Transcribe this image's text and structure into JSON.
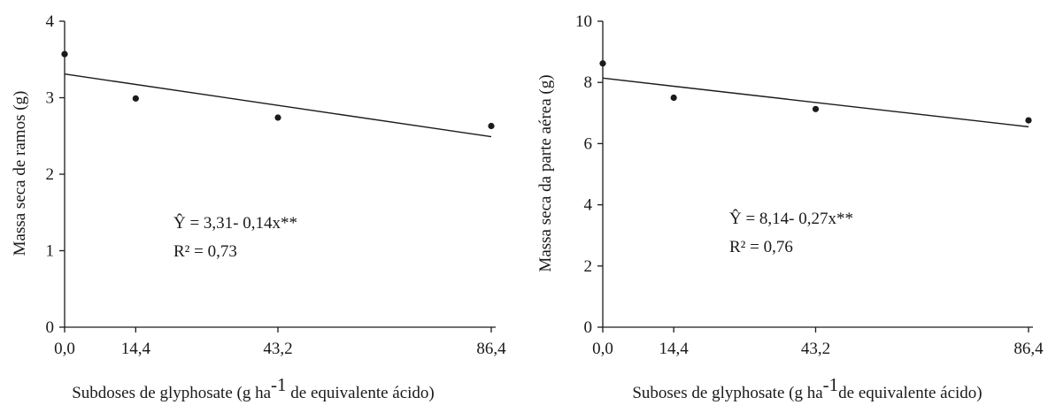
{
  "chart_data": [
    {
      "type": "scatter",
      "ylabel": "Massa seca de ramos (g)",
      "xlabel": "Subdoses de glyphosate (g ha",
      "xlabel_sup": "-1",
      "xlabel_tail": " de equivalente ácido)",
      "x_tick_labels": [
        "0,0",
        "14,4",
        "43,2",
        "86,4"
      ],
      "x_values": [
        0,
        14.4,
        43.2,
        86.4
      ],
      "y_ticks": [
        "0",
        "1",
        "2",
        "3",
        "4"
      ],
      "ylim": [
        0,
        4
      ],
      "points": [
        {
          "x": 0.0,
          "y": 3.57
        },
        {
          "x": 14.4,
          "y": 2.99
        },
        {
          "x": 43.2,
          "y": 2.74
        },
        {
          "x": 86.4,
          "y": 2.63
        }
      ],
      "trendline": {
        "from": [
          0,
          3.31
        ],
        "to": [
          86.4,
          2.49
        ]
      },
      "equation": "Ŷ = 3,31- 0,14x**",
      "r2": "R² = 0,73"
    },
    {
      "type": "scatter",
      "ylabel": "Massa seca da parte aérea (g)",
      "xlabel": "Suboses de glyphosate (g ha",
      "xlabel_sup": "-1",
      "xlabel_tail": "de equivalente ácido)",
      "x_tick_labels": [
        "0,0",
        "14,4",
        "43,2",
        "86,4"
      ],
      "x_values": [
        0,
        14.4,
        43.2,
        86.4
      ],
      "y_ticks": [
        "0",
        "2",
        "4",
        "6",
        "8",
        "10"
      ],
      "ylim": [
        0,
        10
      ],
      "points": [
        {
          "x": 0.0,
          "y": 8.62
        },
        {
          "x": 14.4,
          "y": 7.5
        },
        {
          "x": 43.2,
          "y": 7.13
        },
        {
          "x": 86.4,
          "y": 6.76
        }
      ],
      "trendline": {
        "from": [
          0,
          8.14
        ],
        "to": [
          86.4,
          6.55
        ]
      },
      "equation": "Ŷ = 8,14- 0,27x**",
      "r2": "R² = 0,76"
    }
  ]
}
